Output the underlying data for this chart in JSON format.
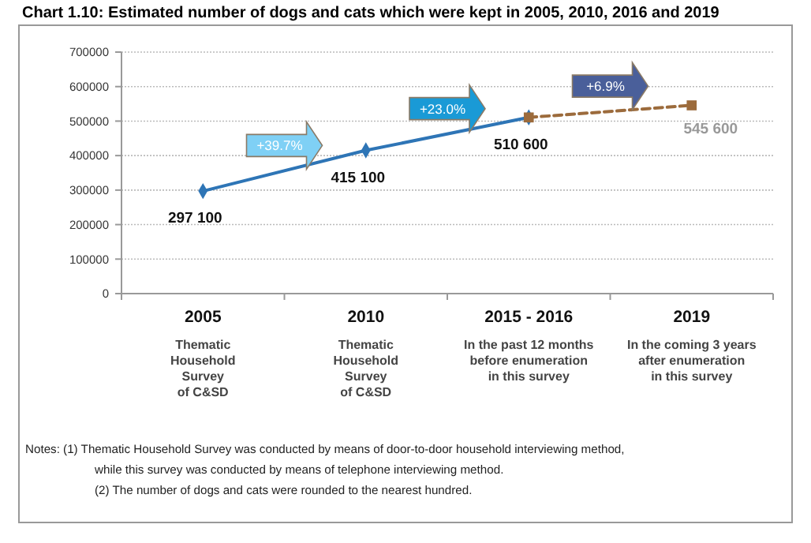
{
  "chart_data": {
    "type": "line",
    "title": "Chart 1.10:    Estimated number of dogs and cats which were kept in 2005, 2010, 2016 and 2019",
    "categories": [
      "2005\nThematic\nHousehold\nSurvey\nof C&SD",
      "2010\nThematic\nHousehold\nSurvey\nof C&SD",
      "2015 - 2016\nIn the past 12 months\nbefore enumeration\nin this survey",
      "2019\nIn the coming 3 years\nafter enumeration\nin this survey"
    ],
    "series": [
      {
        "color": "#2e75b6",
        "marker": "diamond",
        "line_style": "solid",
        "values": [
          297100,
          415100,
          510600,
          null
        ],
        "value_labels": [
          "297 100",
          "415 100",
          "510 600",
          null
        ]
      },
      {
        "color": "#9c6b3c",
        "marker": "square",
        "line_style": "dashed",
        "values": [
          null,
          null,
          510600,
          545600
        ],
        "value_labels": [
          null,
          null,
          null,
          "545 600"
        ]
      }
    ],
    "ylim": [
      0,
      700000
    ],
    "yticks": [
      0,
      100000,
      200000,
      300000,
      400000,
      500000,
      600000,
      700000
    ],
    "grid": "y",
    "annotations": [
      "+39.7%",
      "+23.0%",
      "+6.9%",
      "Notes:  (1) Thematic Household Survey was conducted by means of door-to-door household interviewing method, while this survey was conducted by means of telephone interviewing method.",
      "(2) The number of dogs and cats were rounded to the nearest hundred."
    ]
  }
}
